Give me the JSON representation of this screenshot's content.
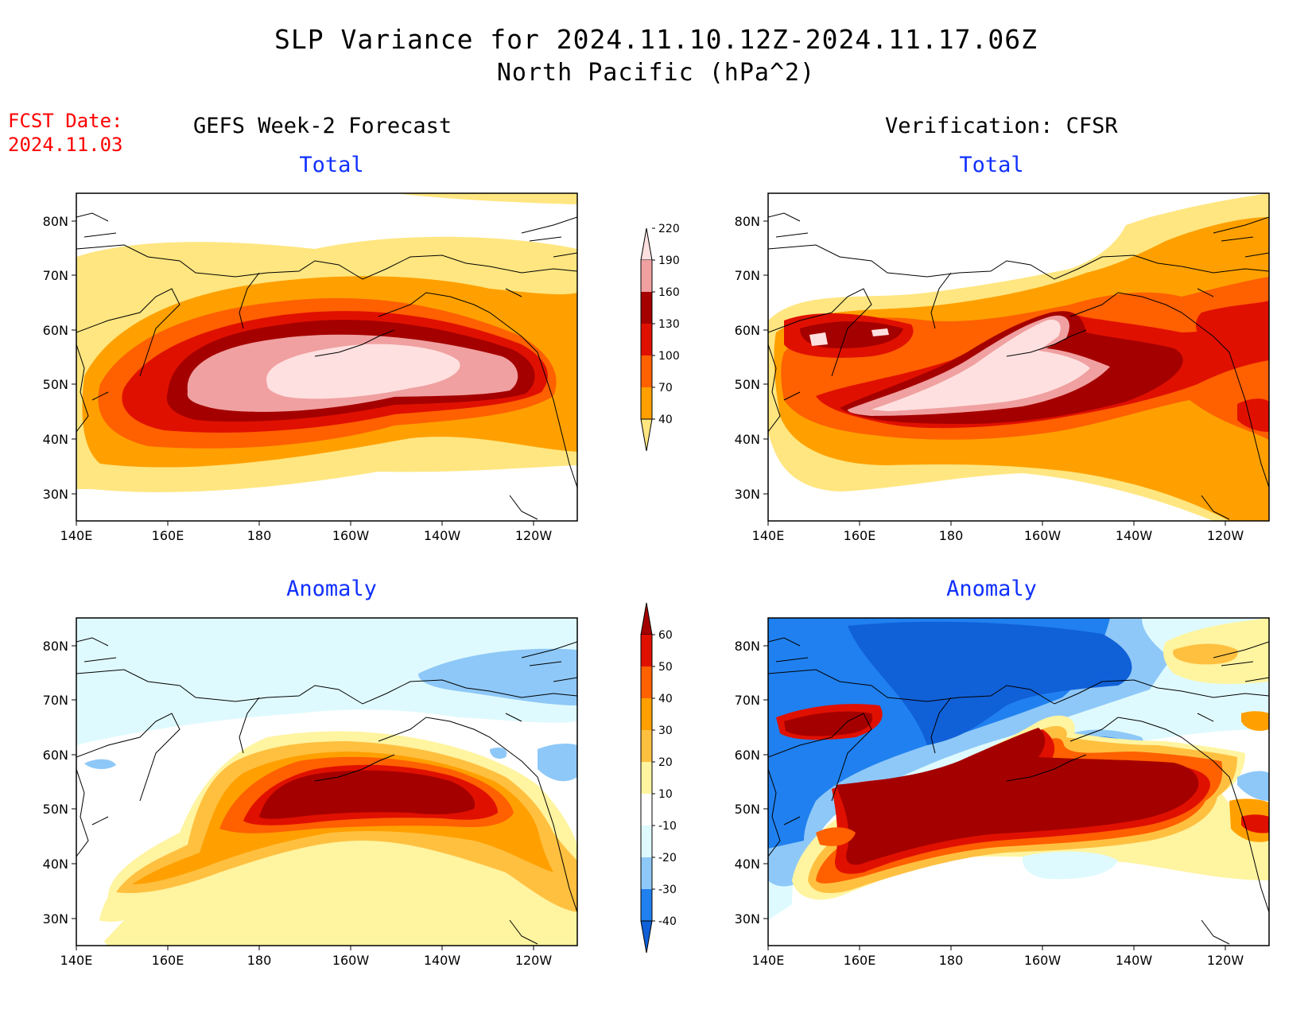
{
  "title": "SLP Variance for 2024.11.10.12Z-2024.11.17.06Z",
  "subtitle": "North Pacific (hPa^2)",
  "fcst_date": {
    "label": "FCST Date:",
    "value": "2024.11.03"
  },
  "columns": {
    "left": "GEFS Week-2 Forecast",
    "right": "Verification: CFSR"
  },
  "panel_labels": {
    "total": "Total",
    "anomaly": "Anomaly"
  },
  "lat_ticks": [
    "80N",
    "70N",
    "60N",
    "50N",
    "40N",
    "30N"
  ],
  "lon_ticks": [
    "140E",
    "160E",
    "180",
    "160W",
    "140W",
    "120W"
  ],
  "total_colorbar": {
    "levels": [
      "40",
      "70",
      "100",
      "130",
      "160",
      "190",
      "220"
    ],
    "colors": [
      "#ffe680",
      "#ffa000",
      "#ff6000",
      "#e01000",
      "#a50000",
      "#f0a0a0",
      "#ffe0e0"
    ]
  },
  "anomaly_colorbar": {
    "levels": [
      "-40",
      "-30",
      "-20",
      "-10",
      "10",
      "20",
      "30",
      "40",
      "50",
      "60"
    ],
    "colors": [
      "#1060d8",
      "#2080ef",
      "#8ec8f8",
      "#dffafe",
      "#ffffff",
      "#fff4a0",
      "#ffc040",
      "#ffa000",
      "#ff6000",
      "#e01000",
      "#a50000"
    ]
  }
}
